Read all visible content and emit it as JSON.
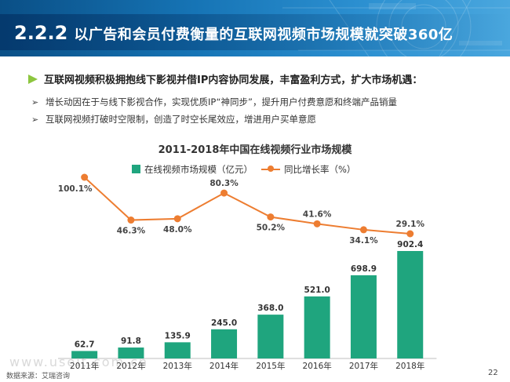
{
  "header": {
    "number": "2.2.2",
    "title": "以广告和会员付费衡量的互联网视频市场规模就突破360亿"
  },
  "main_point": "互联网视频积极拥抱线下影视并借IP内容协同发展，丰富盈利方式，扩大市场机遇：",
  "sub_points": [
    "增长动因在于与线下影视合作，实现优质IP“神同步”，提升用户付费意愿和终端产品销量",
    "互联网视频打破时空限制，创造了时空长尾效应，增进用户买单意愿"
  ],
  "sub_icon": "arrow-bullet-icon",
  "main_icon": "green-arrow-icon",
  "colors": {
    "bar": "#1fa57e",
    "line": "#ed7d31",
    "header": "#1674b5",
    "marker": "#8dc63f"
  },
  "chart_data": {
    "type": "bar",
    "title": "2011-2018年中国在线视频行业市场规模",
    "categories": [
      "2011年",
      "2012年",
      "2013年",
      "2014年",
      "2015年",
      "2016年",
      "2017年",
      "2018年"
    ],
    "series": [
      {
        "name": "在线视频市场规模（亿元）",
        "type": "bar",
        "values": [
          62.7,
          91.8,
          135.9,
          245.0,
          368.0,
          521.0,
          698.9,
          902.4
        ],
        "labels": [
          "62.7",
          "91.8",
          "135.9",
          "245.0",
          "368.0",
          "521.0",
          "698.9",
          "902.4"
        ]
      },
      {
        "name": "同比增长率（%）",
        "type": "line",
        "values": [
          100.1,
          46.3,
          48.0,
          80.3,
          50.2,
          41.6,
          34.1,
          29.1
        ],
        "labels": [
          "100.1%",
          "46.3%",
          "48.0%",
          "80.3%",
          "50.2%",
          "41.6%",
          "34.1%",
          "29.1%"
        ]
      }
    ],
    "legend_position": "top-center",
    "grid": false
  },
  "source": "数据来源：艾瑞咨询",
  "page_number": "22",
  "watermark": "www.useit.com.cn"
}
